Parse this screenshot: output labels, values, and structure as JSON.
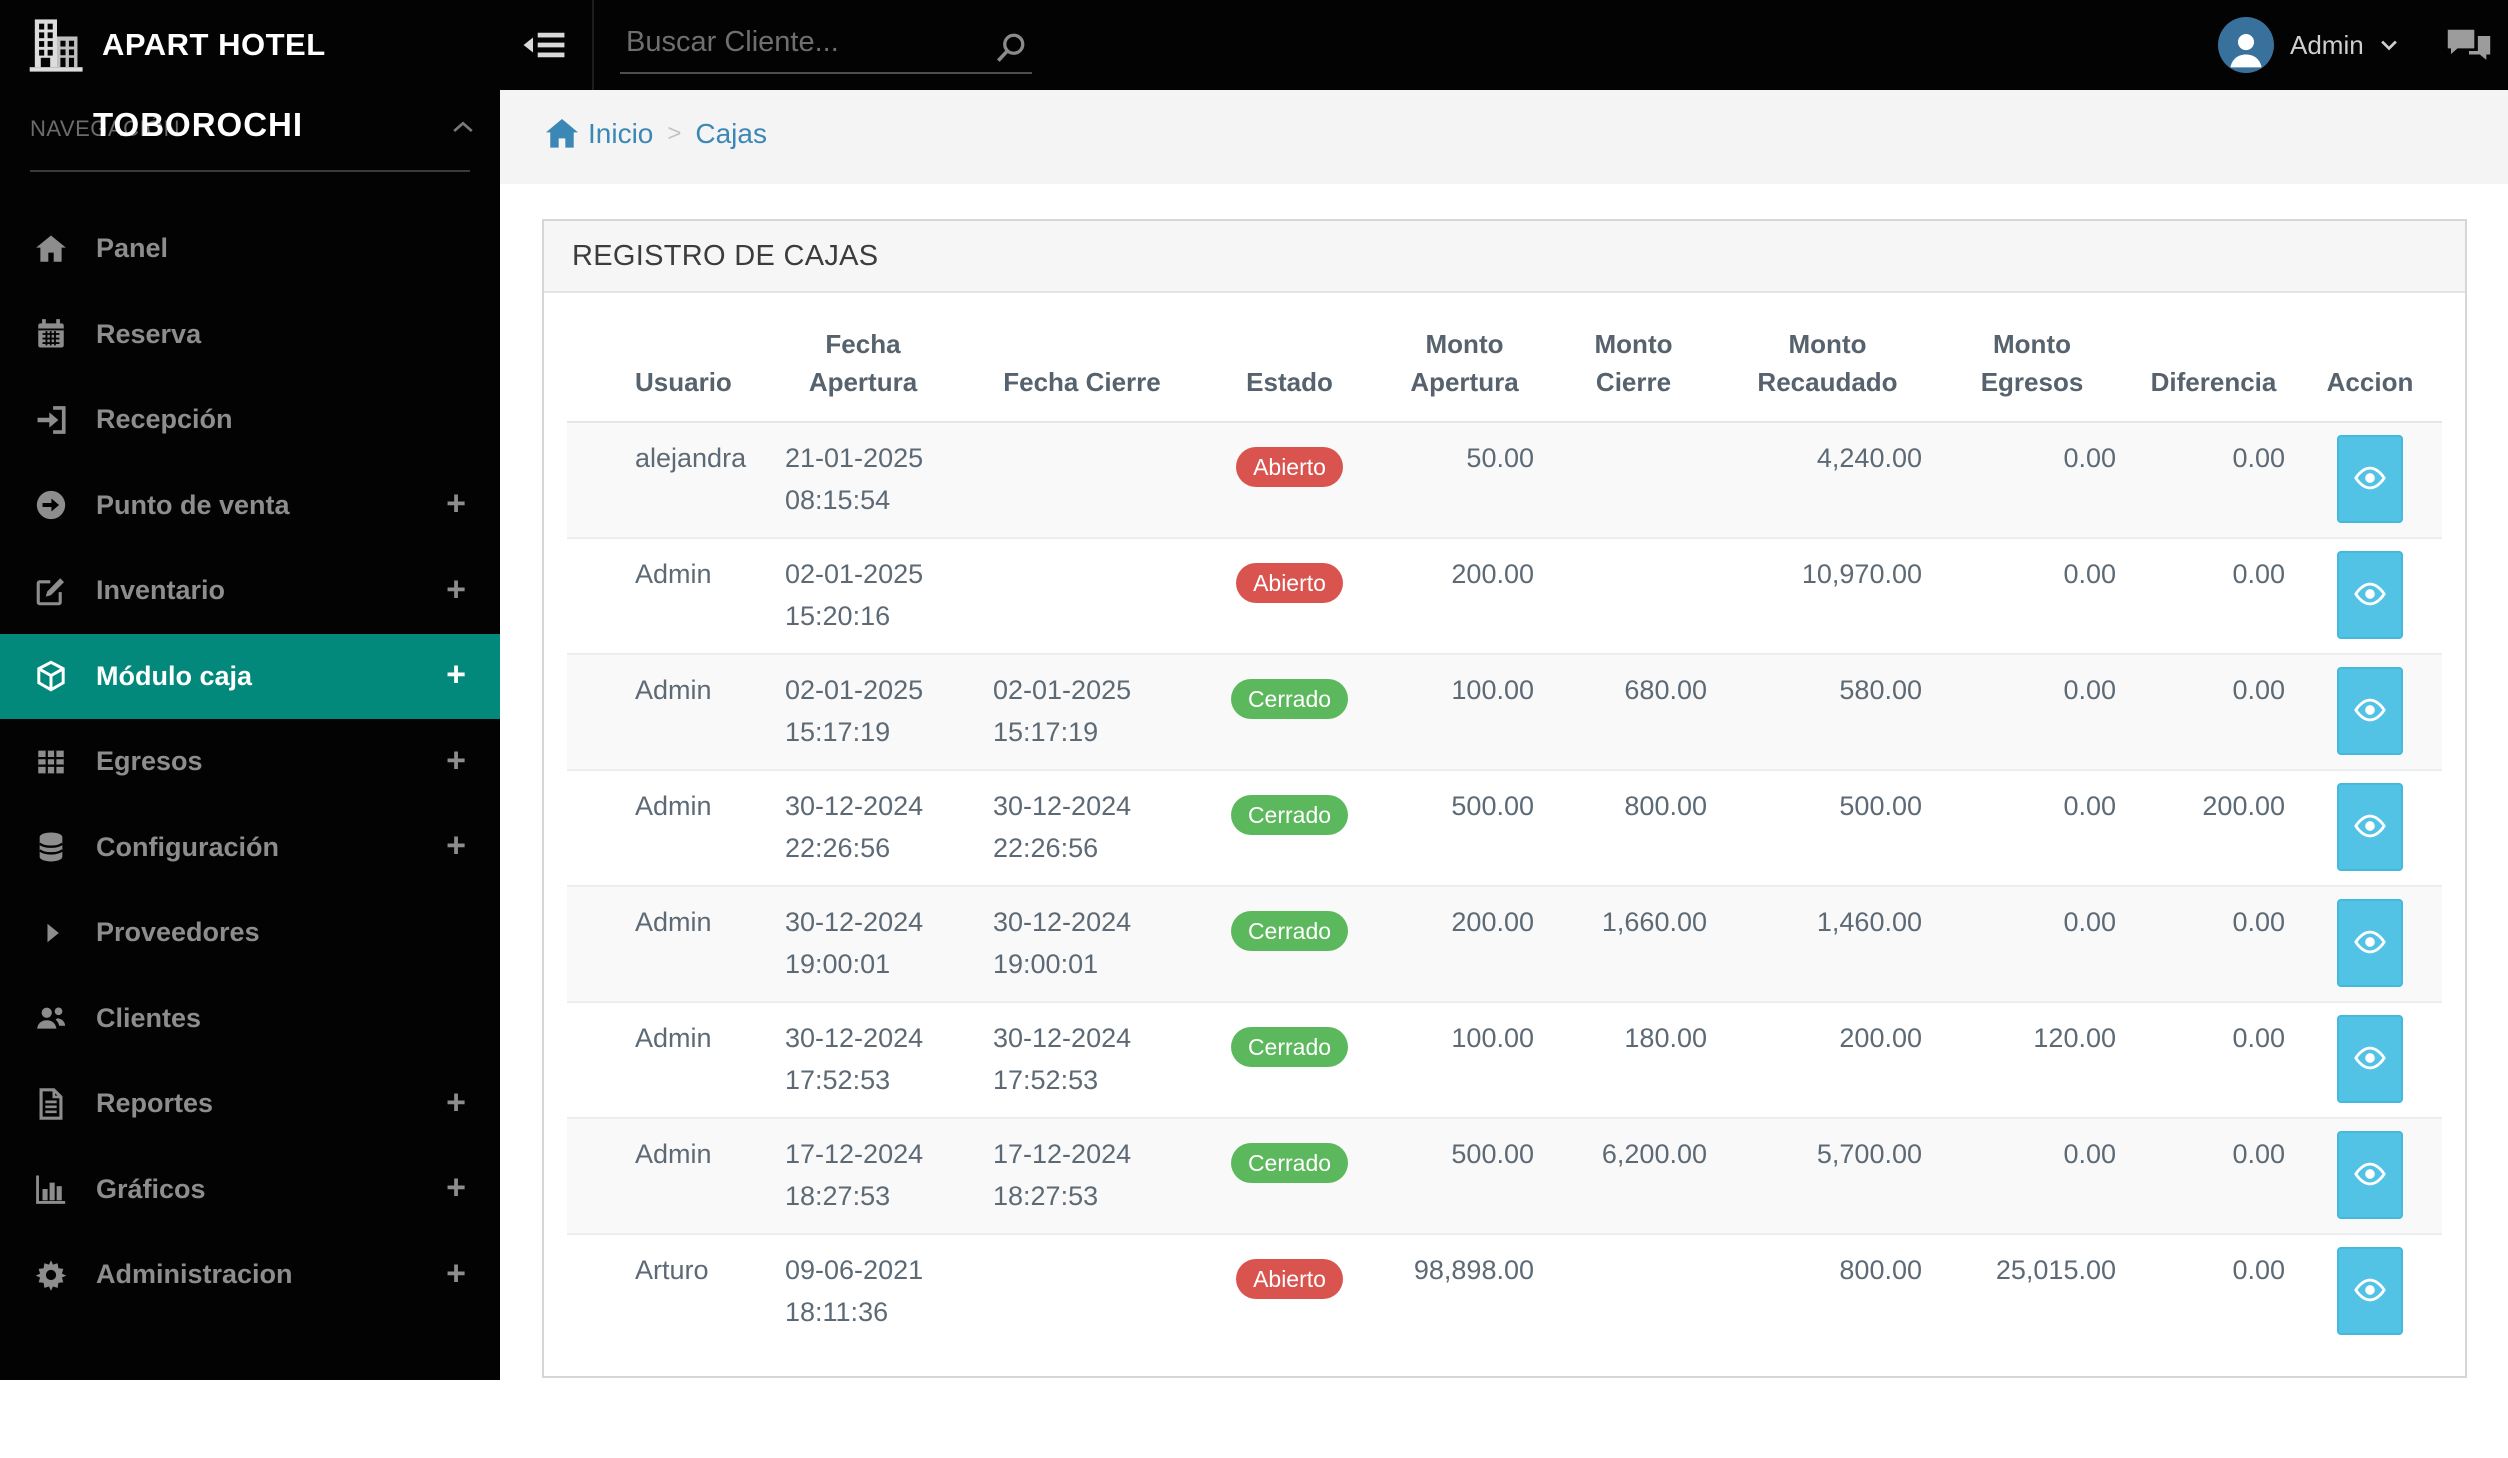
{
  "navbar": {
    "brand": "APART HOTEL",
    "search_placeholder": "Buscar Cliente...",
    "user": "Admin"
  },
  "sidebar": {
    "section_label": "NAVEGACIÓN",
    "title": "TOBOROCHI",
    "expand_glyph": "+",
    "items": [
      {
        "label": "Panel",
        "icon": "home",
        "expandable": false,
        "active": false
      },
      {
        "label": "Reserva",
        "icon": "calendar",
        "expandable": false,
        "active": false
      },
      {
        "label": "Recepción",
        "icon": "sign-in",
        "expandable": false,
        "active": false
      },
      {
        "label": "Punto de venta",
        "icon": "arrow-circle-right",
        "expandable": true,
        "active": false
      },
      {
        "label": "Inventario",
        "icon": "edit-square",
        "expandable": true,
        "active": false
      },
      {
        "label": "Módulo caja",
        "icon": "cube",
        "expandable": true,
        "active": true
      },
      {
        "label": "Egresos",
        "icon": "table-grid",
        "expandable": true,
        "active": false
      },
      {
        "label": "Configuración",
        "icon": "database",
        "expandable": true,
        "active": false
      },
      {
        "label": "Proveedores",
        "icon": "caret-right",
        "expandable": false,
        "active": false
      },
      {
        "label": "Clientes",
        "icon": "users",
        "expandable": false,
        "active": false
      },
      {
        "label": "Reportes",
        "icon": "file-text",
        "expandable": true,
        "active": false
      },
      {
        "label": "Gráficos",
        "icon": "bar-chart",
        "expandable": true,
        "active": false
      },
      {
        "label": "Administracion",
        "icon": "gear",
        "expandable": true,
        "active": false
      }
    ]
  },
  "breadcrumb": {
    "home": "Inicio",
    "separator": ">",
    "current": "Cajas"
  },
  "panel": {
    "title": "REGISTRO DE CAJAS"
  },
  "table": {
    "columns": [
      "Usuario",
      "Fecha Apertura",
      "Fecha Cierre",
      "Estado",
      "Monto Apertura",
      "Monto Cierre",
      "Monto Recaudado",
      "Monto Egresos",
      "Diferencia",
      "Accion"
    ],
    "action_icon": "eye",
    "rows": [
      {
        "usuario": "alejandra",
        "fecha_apertura": "21-01-2025 08:15:54",
        "fecha_cierre": "",
        "estado": "Abierto",
        "estado_variant": "danger",
        "monto_apertura": "50.00",
        "monto_cierre": "",
        "monto_recaudado": "4,240.00",
        "monto_egresos": "0.00",
        "diferencia": "0.00"
      },
      {
        "usuario": "Admin",
        "fecha_apertura": "02-01-2025 15:20:16",
        "fecha_cierre": "",
        "estado": "Abierto",
        "estado_variant": "danger",
        "monto_apertura": "200.00",
        "monto_cierre": "",
        "monto_recaudado": "10,970.00",
        "monto_egresos": "0.00",
        "diferencia": "0.00"
      },
      {
        "usuario": "Admin",
        "fecha_apertura": "02-01-2025 15:17:19",
        "fecha_cierre": "02-01-2025 15:17:19",
        "estado": "Cerrado",
        "estado_variant": "success",
        "monto_apertura": "100.00",
        "monto_cierre": "680.00",
        "monto_recaudado": "580.00",
        "monto_egresos": "0.00",
        "diferencia": "0.00"
      },
      {
        "usuario": "Admin",
        "fecha_apertura": "30-12-2024 22:26:56",
        "fecha_cierre": "30-12-2024 22:26:56",
        "estado": "Cerrado",
        "estado_variant": "success",
        "monto_apertura": "500.00",
        "monto_cierre": "800.00",
        "monto_recaudado": "500.00",
        "monto_egresos": "0.00",
        "diferencia": "200.00"
      },
      {
        "usuario": "Admin",
        "fecha_apertura": "30-12-2024 19:00:01",
        "fecha_cierre": "30-12-2024 19:00:01",
        "estado": "Cerrado",
        "estado_variant": "success",
        "monto_apertura": "200.00",
        "monto_cierre": "1,660.00",
        "monto_recaudado": "1,460.00",
        "monto_egresos": "0.00",
        "diferencia": "0.00"
      },
      {
        "usuario": "Admin",
        "fecha_apertura": "30-12-2024 17:52:53",
        "fecha_cierre": "30-12-2024 17:52:53",
        "estado": "Cerrado",
        "estado_variant": "success",
        "monto_apertura": "100.00",
        "monto_cierre": "180.00",
        "monto_recaudado": "200.00",
        "monto_egresos": "120.00",
        "diferencia": "0.00"
      },
      {
        "usuario": "Admin",
        "fecha_apertura": "17-12-2024 18:27:53",
        "fecha_cierre": "17-12-2024 18:27:53",
        "estado": "Cerrado",
        "estado_variant": "success",
        "monto_apertura": "500.00",
        "monto_cierre": "6,200.00",
        "monto_recaudado": "5,700.00",
        "monto_egresos": "0.00",
        "diferencia": "0.00"
      },
      {
        "usuario": "Arturo",
        "fecha_apertura": "09-06-2021 18:11:36",
        "fecha_cierre": "",
        "estado": "Abierto",
        "estado_variant": "danger",
        "monto_apertura": "98,898.00",
        "monto_cierre": "",
        "monto_recaudado": "800.00",
        "monto_egresos": "25,015.00",
        "diferencia": "0.00"
      }
    ]
  },
  "colors": {
    "navbar_bg": "#030303",
    "sidebar_active": "#02897b",
    "link_blue": "#3b87b5",
    "badge_open": "#d9534f",
    "badge_closed": "#5cb85c",
    "action_button": "#52c2e5"
  }
}
